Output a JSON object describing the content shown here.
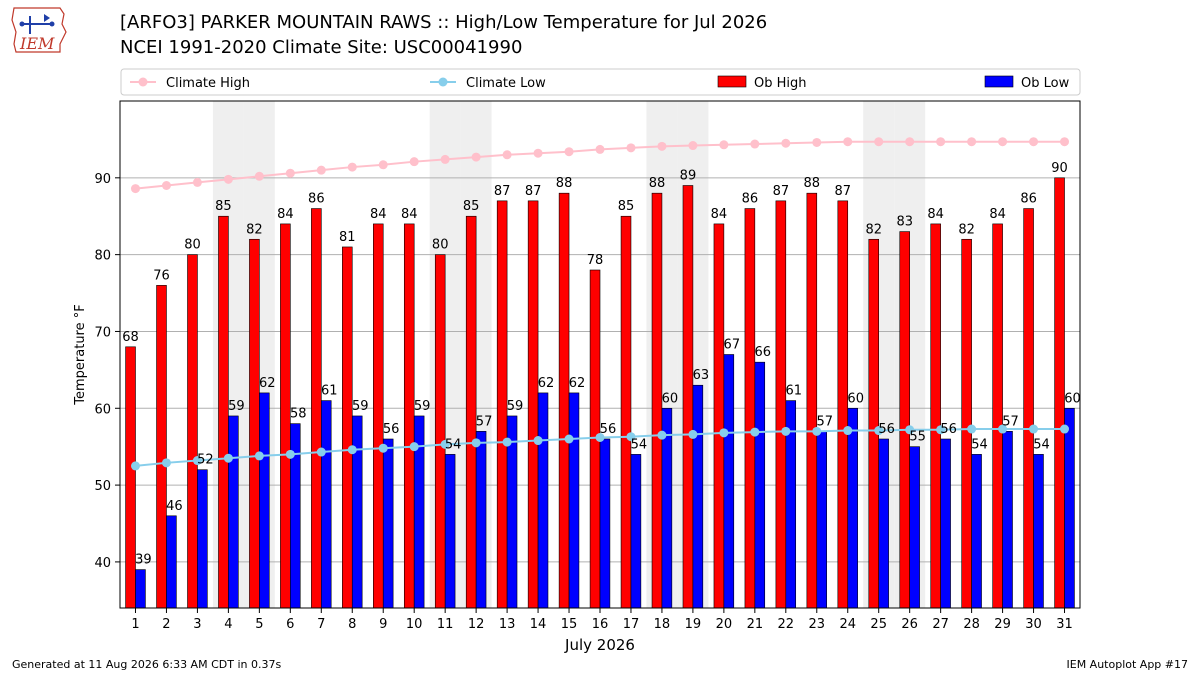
{
  "header": {
    "title_line1": "[ARFO3] PARKER MOUNTAIN RAWS :: High/Low Temperature for Jul 2026",
    "title_line2": "NCEI 1991-2020 Climate Site: USC00041990",
    "logo_text": "IEM",
    "logo_icon": "iowa-state-outline-weather-station-icon"
  },
  "footer": {
    "generated": "Generated at 11 Aug 2026 6:33 AM CDT in 0.37s",
    "app": "IEM Autoplot App #17"
  },
  "chart_data": {
    "type": "bar",
    "xlabel": "July 2026",
    "ylabel": "Temperature °F",
    "ylim": [
      34,
      100
    ],
    "yticks": [
      40,
      50,
      60,
      70,
      80,
      90
    ],
    "grid": "horizontal",
    "legend_position": "top",
    "weekend_shading_days": [
      4,
      5,
      11,
      12,
      18,
      19,
      25,
      26
    ],
    "categories": [
      "1",
      "2",
      "3",
      "4",
      "5",
      "6",
      "7",
      "8",
      "9",
      "10",
      "11",
      "12",
      "13",
      "14",
      "15",
      "16",
      "17",
      "18",
      "19",
      "20",
      "21",
      "22",
      "23",
      "24",
      "25",
      "26",
      "27",
      "28",
      "29",
      "30",
      "31"
    ],
    "series": [
      {
        "name": "Climate High",
        "kind": "line",
        "color": "#ffc0cb",
        "values": [
          88.6,
          89.0,
          89.4,
          89.8,
          90.2,
          90.6,
          91.0,
          91.4,
          91.7,
          92.1,
          92.4,
          92.7,
          93.0,
          93.2,
          93.4,
          93.7,
          93.9,
          94.1,
          94.2,
          94.3,
          94.4,
          94.5,
          94.6,
          94.7,
          94.7,
          94.7,
          94.7,
          94.7,
          94.7,
          94.7,
          94.7
        ]
      },
      {
        "name": "Climate Low",
        "kind": "line",
        "color": "#87ceeb",
        "values": [
          52.5,
          52.9,
          53.2,
          53.5,
          53.8,
          54.0,
          54.3,
          54.6,
          54.8,
          55.0,
          55.3,
          55.5,
          55.6,
          55.8,
          56.0,
          56.2,
          56.3,
          56.5,
          56.6,
          56.8,
          56.9,
          57.0,
          57.0,
          57.1,
          57.1,
          57.2,
          57.2,
          57.3,
          57.3,
          57.3,
          57.3
        ]
      },
      {
        "name": "Ob High",
        "kind": "bar",
        "color": "#ff0000",
        "values": [
          68,
          76,
          80,
          85,
          82,
          84,
          86,
          81,
          84,
          84,
          80,
          85,
          87,
          87,
          88,
          78,
          85,
          88,
          89,
          84,
          86,
          87,
          88,
          87,
          82,
          83,
          84,
          82,
          84,
          86,
          90
        ]
      },
      {
        "name": "Ob Low",
        "kind": "bar",
        "color": "#0000ff",
        "values": [
          39,
          46,
          52,
          59,
          62,
          58,
          61,
          59,
          56,
          59,
          54,
          57,
          59,
          62,
          62,
          56,
          54,
          60,
          63,
          67,
          66,
          61,
          57,
          60,
          56,
          55,
          56,
          54,
          57,
          54,
          60
        ]
      }
    ]
  }
}
